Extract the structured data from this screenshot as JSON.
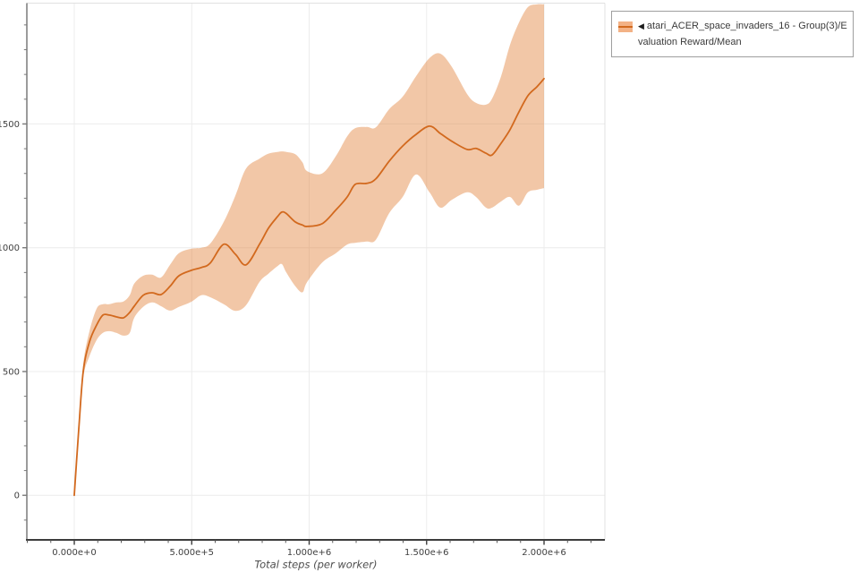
{
  "legend": {
    "collapse_icon": "◀",
    "label": "atari_ACER_space_invaders_16 - Group(3)/Evaluation Reward/Mean"
  },
  "chart_data": {
    "type": "line",
    "title": "",
    "xlabel": "Total steps (per worker)",
    "ylabel": "",
    "xlim": [
      -202000,
      2259000
    ],
    "ylim": [
      -180,
      1988
    ],
    "grid": true,
    "legend_position": "top-right-outside",
    "x_ticks": [
      {
        "value": 0,
        "label": "0.000e+0"
      },
      {
        "value": 500000,
        "label": "5.000e+5"
      },
      {
        "value": 1000000,
        "label": "1.000e+6"
      },
      {
        "value": 1500000,
        "label": "1.500e+6"
      },
      {
        "value": 2000000,
        "label": "2.000e+6"
      }
    ],
    "x_minor_step": 100000,
    "y_ticks": [
      {
        "value": 0,
        "label": "0"
      },
      {
        "value": 500,
        "label": "500"
      },
      {
        "value": 1000,
        "label": "1000"
      },
      {
        "value": 1500,
        "label": "1500"
      }
    ],
    "y_minor_step": 100,
    "colors": {
      "grid": "#ececec",
      "frame": "#e0e0e0",
      "axis_bottom": "#3c3c3c",
      "axis_left": "#7a7a7a",
      "tick": "#555555"
    },
    "series": [
      {
        "name": "atari_ACER_space_invaders_16 - Group(3)/Evaluation Reward/Mean",
        "color": "#d2691e",
        "band_color": "rgba(224,122,45,0.42)",
        "steps": [
          0,
          19000,
          38100,
          64800,
          95200,
          121900,
          148600,
          179000,
          209500,
          236200,
          255200,
          293300,
          331400,
          369500,
          407600,
          445700,
          499000,
          541000,
          579000,
          636200,
          685700,
          731400,
          788600,
          826700,
          864800,
          883800,
          902900,
          941000,
          971400,
          990500,
          1055200,
          1112400,
          1161900,
          1196200,
          1245700,
          1283800,
          1341000,
          1398100,
          1455200,
          1512400,
          1558100,
          1607600,
          1672400,
          1710500,
          1752400,
          1779000,
          1817100,
          1855200,
          1893300,
          1931400,
          1969500,
          2000000
        ],
        "mean": [
          0,
          266,
          500,
          620,
          688,
          728,
          728,
          721,
          717,
          739,
          764,
          808,
          818,
          811,
          844,
          887,
          909,
          920,
          938,
          1014,
          974,
          931,
          1014,
          1079,
          1125,
          1144,
          1138,
          1104,
          1092,
          1086,
          1097,
          1151,
          1205,
          1256,
          1260,
          1278,
          1350,
          1411,
          1458,
          1491,
          1462,
          1430,
          1397,
          1401,
          1382,
          1375,
          1422,
          1477,
          1549,
          1614,
          1650,
          1683
        ],
        "lo": [
          0,
          255,
          475,
          562,
          627,
          656,
          663,
          656,
          645,
          656,
          717,
          761,
          779,
          764,
          746,
          761,
          782,
          808,
          800,
          772,
          745,
          768,
          862,
          895,
          925,
          934,
          900,
          845,
          820,
          860,
          940,
          977,
          1013,
          1020,
          1025,
          1032,
          1140,
          1205,
          1296,
          1224,
          1162,
          1194,
          1224,
          1205,
          1162,
          1162,
          1187,
          1205,
          1170,
          1224,
          1234,
          1241
        ],
        "hi": [
          5,
          285,
          530,
          663,
          754,
          772,
          772,
          779,
          783,
          808,
          855,
          887,
          891,
          880,
          931,
          978,
          996,
          1000,
          1017,
          1104,
          1210,
          1320,
          1360,
          1380,
          1387,
          1389,
          1387,
          1378,
          1345,
          1310,
          1300,
          1368,
          1450,
          1483,
          1488,
          1486,
          1560,
          1610,
          1693,
          1766,
          1784,
          1730,
          1621,
          1585,
          1578,
          1603,
          1693,
          1820,
          1910,
          1972,
          1983,
          1983
        ]
      }
    ]
  }
}
